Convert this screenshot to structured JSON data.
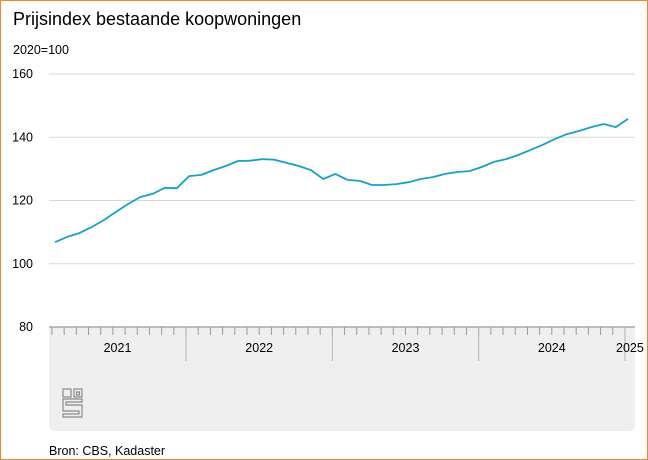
{
  "title": "Prijsindex bestaande koopwoningen",
  "unit_label": "2020=100",
  "source": "Bron: CBS, Kadaster",
  "logo": "cbs-logo",
  "colors": {
    "line": "#1a9fc9",
    "border": "#f0862a",
    "axis_band": "#efefef",
    "grid": "#d9d9d9"
  },
  "chart_data": {
    "type": "line",
    "title": "Prijsindex bestaande koopwoningen",
    "ylabel": "2020=100",
    "ylim": [
      80,
      160
    ],
    "yticks": [
      80,
      100,
      120,
      140,
      160
    ],
    "xtick_labels": [
      "2021",
      "2022",
      "2023",
      "2024",
      "2025"
    ],
    "grid": true,
    "x": [
      "2021-02",
      "2021-03",
      "2021-04",
      "2021-05",
      "2021-06",
      "2021-07",
      "2021-08",
      "2021-09",
      "2021-10",
      "2021-11",
      "2021-12",
      "2022-01",
      "2022-02",
      "2022-03",
      "2022-04",
      "2022-05",
      "2022-06",
      "2022-07",
      "2022-08",
      "2022-09",
      "2022-10",
      "2022-11",
      "2022-12",
      "2023-01",
      "2023-02",
      "2023-03",
      "2023-04",
      "2023-05",
      "2023-06",
      "2023-07",
      "2023-08",
      "2023-09",
      "2023-10",
      "2023-11",
      "2023-12",
      "2024-01",
      "2024-02",
      "2024-03",
      "2024-04",
      "2024-05",
      "2024-06",
      "2024-07",
      "2024-08",
      "2024-09",
      "2024-10",
      "2024-11",
      "2024-12",
      "2025-01"
    ],
    "values": [
      106.8,
      108.5,
      109.7,
      111.6,
      113.8,
      116.4,
      118.9,
      121.1,
      122.1,
      124.0,
      123.9,
      127.7,
      128.1,
      129.6,
      130.9,
      132.5,
      132.6,
      133.1,
      132.9,
      131.9,
      130.9,
      129.6,
      126.8,
      128.4,
      126.5,
      126.2,
      124.9,
      124.9,
      125.2,
      125.8,
      126.8,
      127.4,
      128.4,
      129.0,
      129.3,
      130.6,
      132.2,
      133.1,
      134.4,
      136.0,
      137.6,
      139.4,
      141.0,
      142.0,
      143.2,
      144.2,
      143.2,
      145.8
    ]
  }
}
